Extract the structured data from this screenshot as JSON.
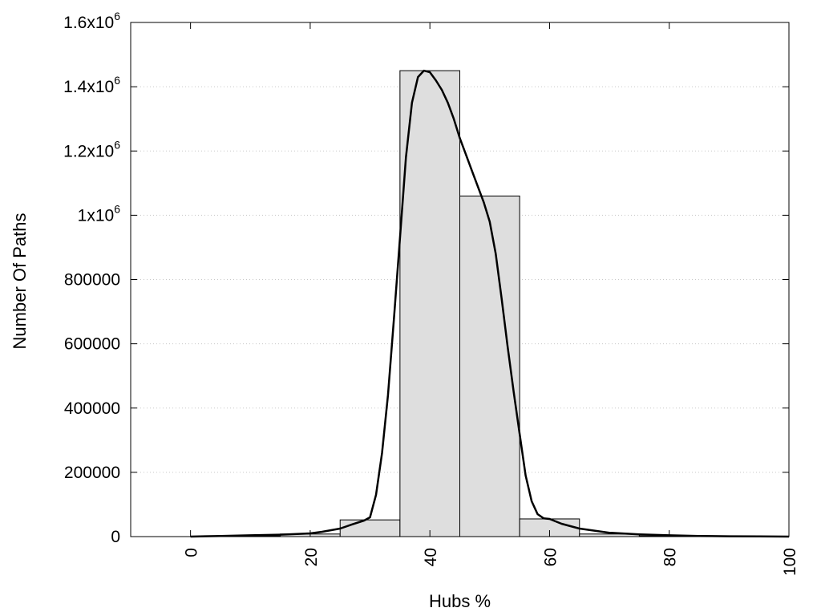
{
  "chart_data": {
    "type": "bar",
    "xlabel": "Hubs %",
    "ylabel": "Number Of Paths",
    "xlim": [
      -10,
      100
    ],
    "ylim": [
      0,
      1600000
    ],
    "grid": "horizontal dotted",
    "x_ticks": [
      0,
      20,
      40,
      60,
      80,
      100
    ],
    "x_tick_labels": [
      "0",
      "20",
      "40",
      "60",
      "80",
      "100"
    ],
    "y_ticks": [
      {
        "value": 0,
        "label": "0"
      },
      {
        "value": 200000,
        "label": "200000"
      },
      {
        "value": 400000,
        "label": "400000"
      },
      {
        "value": 600000,
        "label": "600000"
      },
      {
        "value": 800000,
        "label": "800000"
      },
      {
        "value": 1000000,
        "base": "1x10",
        "exp": "6"
      },
      {
        "value": 1200000,
        "base": "1.2x10",
        "exp": "6"
      },
      {
        "value": 1400000,
        "base": "1.4x10",
        "exp": "6"
      },
      {
        "value": 1600000,
        "base": "1.6x10",
        "exp": "6"
      }
    ],
    "bars": [
      {
        "x0": 0,
        "x1": 5,
        "value": 1000
      },
      {
        "x0": 5,
        "x1": 15,
        "value": 2000
      },
      {
        "x0": 15,
        "x1": 25,
        "value": 8000
      },
      {
        "x0": 25,
        "x1": 35,
        "value": 52000
      },
      {
        "x0": 35,
        "x1": 45,
        "value": 1450000
      },
      {
        "x0": 45,
        "x1": 55,
        "value": 1060000
      },
      {
        "x0": 55,
        "x1": 65,
        "value": 55000
      },
      {
        "x0": 65,
        "x1": 75,
        "value": 8000
      },
      {
        "x0": 75,
        "x1": 85,
        "value": 2000
      },
      {
        "x0": 85,
        "x1": 95,
        "value": 1000
      },
      {
        "x0": 95,
        "x1": 100,
        "value": 500
      }
    ],
    "curve": {
      "x": [
        0,
        5,
        10,
        15,
        20,
        22,
        25,
        27,
        29,
        30,
        31,
        32,
        33,
        34,
        35,
        36,
        37,
        38,
        39,
        40,
        41,
        42,
        43,
        44,
        45,
        46,
        47,
        48,
        49,
        50,
        51,
        52,
        53,
        54,
        55,
        56,
        57,
        58,
        59,
        60,
        62,
        65,
        70,
        75,
        80,
        85,
        90,
        95,
        100
      ],
      "y": [
        0,
        2000,
        4000,
        6000,
        10000,
        15000,
        25000,
        38000,
        50000,
        60000,
        130000,
        260000,
        440000,
        680000,
        930000,
        1180000,
        1350000,
        1430000,
        1450000,
        1445000,
        1420000,
        1390000,
        1350000,
        1300000,
        1240000,
        1190000,
        1140000,
        1090000,
        1040000,
        980000,
        880000,
        740000,
        590000,
        450000,
        320000,
        190000,
        110000,
        70000,
        57000,
        55000,
        40000,
        25000,
        12000,
        7000,
        4000,
        2000,
        1000,
        500,
        0
      ]
    }
  }
}
